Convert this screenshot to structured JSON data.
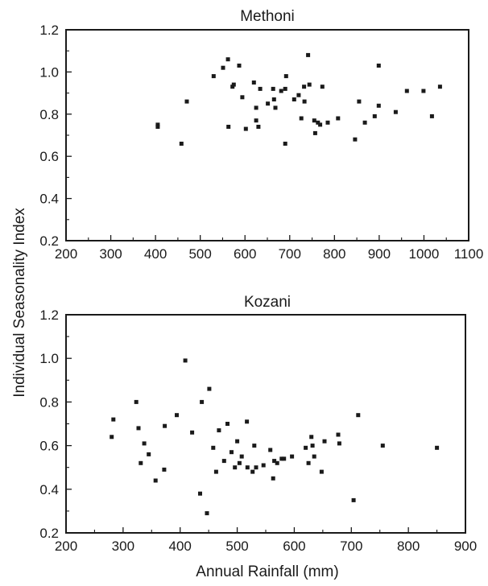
{
  "figure": {
    "ylabel": "Individual Seasonality Index",
    "xlabel": "Annual Rainfall (mm)"
  },
  "chart_data": [
    {
      "type": "scatter",
      "title": "Methoni",
      "xlabel": "",
      "ylabel": "Individual Seasonality Index",
      "xlim": [
        200,
        1100
      ],
      "ylim": [
        0.2,
        1.2
      ],
      "xticks": [
        200,
        300,
        400,
        500,
        600,
        700,
        800,
        900,
        1000,
        1100
      ],
      "yticks": [
        0.2,
        0.4,
        0.6,
        0.8,
        1.0,
        1.2
      ],
      "ytick_labels": [
        "0.2",
        "0.4",
        "0.6",
        "0.8",
        "1.0",
        "1.2"
      ],
      "grid": false,
      "marker_color": "#1a1a1a",
      "points": [
        [
          405,
          0.75
        ],
        [
          405,
          0.74
        ],
        [
          458,
          0.66
        ],
        [
          470,
          0.86
        ],
        [
          530,
          0.98
        ],
        [
          551,
          1.02
        ],
        [
          562,
          1.06
        ],
        [
          563,
          0.74
        ],
        [
          572,
          0.93
        ],
        [
          575,
          0.94
        ],
        [
          587,
          1.03
        ],
        [
          594,
          0.88
        ],
        [
          602,
          0.73
        ],
        [
          620,
          0.95
        ],
        [
          625,
          0.83
        ],
        [
          625,
          0.77
        ],
        [
          630,
          0.74
        ],
        [
          634,
          0.92
        ],
        [
          651,
          0.85
        ],
        [
          663,
          0.92
        ],
        [
          665,
          0.87
        ],
        [
          668,
          0.83
        ],
        [
          681,
          0.91
        ],
        [
          690,
          0.92
        ],
        [
          690,
          0.66
        ],
        [
          692,
          0.98
        ],
        [
          710,
          0.87
        ],
        [
          720,
          0.89
        ],
        [
          726,
          0.78
        ],
        [
          732,
          0.93
        ],
        [
          733,
          0.86
        ],
        [
          741,
          1.08
        ],
        [
          744,
          0.94
        ],
        [
          755,
          0.77
        ],
        [
          757,
          0.71
        ],
        [
          763,
          0.76
        ],
        [
          768,
          0.75
        ],
        [
          773,
          0.93
        ],
        [
          785,
          0.76
        ],
        [
          808,
          0.78
        ],
        [
          846,
          0.68
        ],
        [
          855,
          0.86
        ],
        [
          868,
          0.76
        ],
        [
          890,
          0.79
        ],
        [
          899,
          1.03
        ],
        [
          899,
          0.84
        ],
        [
          937,
          0.81
        ],
        [
          962,
          0.91
        ],
        [
          999,
          0.91
        ],
        [
          1018,
          0.79
        ],
        [
          1036,
          0.93
        ]
      ]
    },
    {
      "type": "scatter",
      "title": "Kozani",
      "xlabel": "Annual Rainfall (mm)",
      "ylabel": "Individual Seasonality Index",
      "xlim": [
        200,
        900
      ],
      "ylim": [
        0.2,
        1.2
      ],
      "xticks": [
        200,
        300,
        400,
        500,
        600,
        700,
        800,
        900
      ],
      "yticks": [
        0.2,
        0.4,
        0.6,
        0.8,
        1.0,
        1.2
      ],
      "ytick_labels": [
        "0.2",
        "0.4",
        "0.6",
        "0.8",
        "1.0",
        "1.2"
      ],
      "grid": false,
      "marker_color": "#1a1a1a",
      "points": [
        [
          280,
          0.64
        ],
        [
          283,
          0.72
        ],
        [
          323,
          0.8
        ],
        [
          327,
          0.68
        ],
        [
          331,
          0.52
        ],
        [
          337,
          0.61
        ],
        [
          345,
          0.56
        ],
        [
          357,
          0.44
        ],
        [
          372,
          0.49
        ],
        [
          373,
          0.69
        ],
        [
          394,
          0.74
        ],
        [
          409,
          0.99
        ],
        [
          421,
          0.66
        ],
        [
          435,
          0.38
        ],
        [
          438,
          0.8
        ],
        [
          447,
          0.29
        ],
        [
          451,
          0.86
        ],
        [
          458,
          0.59
        ],
        [
          463,
          0.48
        ],
        [
          468,
          0.67
        ],
        [
          477,
          0.53
        ],
        [
          483,
          0.7
        ],
        [
          490,
          0.57
        ],
        [
          496,
          0.5
        ],
        [
          500,
          0.62
        ],
        [
          504,
          0.52
        ],
        [
          508,
          0.55
        ],
        [
          517,
          0.71
        ],
        [
          518,
          0.5
        ],
        [
          527,
          0.48
        ],
        [
          530,
          0.6
        ],
        [
          533,
          0.5
        ],
        [
          546,
          0.51
        ],
        [
          558,
          0.58
        ],
        [
          563,
          0.45
        ],
        [
          565,
          0.53
        ],
        [
          570,
          0.52
        ],
        [
          578,
          0.54
        ],
        [
          582,
          0.54
        ],
        [
          596,
          0.55
        ],
        [
          620,
          0.59
        ],
        [
          625,
          0.52
        ],
        [
          630,
          0.64
        ],
        [
          632,
          0.6
        ],
        [
          635,
          0.55
        ],
        [
          648,
          0.48
        ],
        [
          653,
          0.62
        ],
        [
          677,
          0.65
        ],
        [
          679,
          0.61
        ],
        [
          704,
          0.35
        ],
        [
          712,
          0.74
        ],
        [
          755,
          0.6
        ],
        [
          850,
          0.59
        ]
      ]
    }
  ]
}
